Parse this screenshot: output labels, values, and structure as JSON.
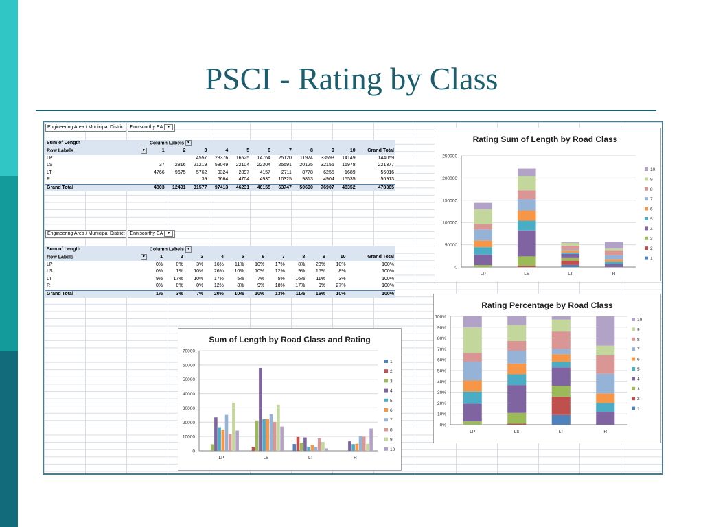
{
  "slide": {
    "title": "PSCI - Rating by Class"
  },
  "filter": {
    "label": "Engineering Area / Municipal District",
    "value": "Enniscorthy EA"
  },
  "pivot_sum": {
    "header1": [
      "Sum of Length",
      "Column Labels"
    ],
    "header2": [
      "Row Labels",
      "1",
      "2",
      "3",
      "4",
      "5",
      "6",
      "7",
      "8",
      "9",
      "10",
      "Grand Total"
    ],
    "rows": [
      [
        "LP",
        "",
        "",
        "4557",
        "23376",
        "16525",
        "14764",
        "25120",
        "11974",
        "33593",
        "14149",
        "144059"
      ],
      [
        "LS",
        "37",
        "2816",
        "21219",
        "58049",
        "22104",
        "22304",
        "25591",
        "20125",
        "32155",
        "16978",
        "221377"
      ],
      [
        "LT",
        "4766",
        "9675",
        "5762",
        "9324",
        "2897",
        "4157",
        "2711",
        "8778",
        "6255",
        "1689",
        "56016"
      ],
      [
        "R",
        "",
        "",
        "39",
        "6664",
        "4704",
        "4930",
        "10325",
        "9813",
        "4904",
        "15535",
        "56913"
      ]
    ],
    "total": [
      "Grand Total",
      "4803",
      "12491",
      "31577",
      "97413",
      "46231",
      "46155",
      "63747",
      "50690",
      "76907",
      "48352",
      "478365"
    ]
  },
  "pivot_pct": {
    "header1": [
      "Sum of Length",
      "Column Labels"
    ],
    "header2": [
      "Row Labels",
      "1",
      "2",
      "3",
      "4",
      "5",
      "6",
      "7",
      "8",
      "9",
      "10",
      "Grand Total"
    ],
    "rows": [
      [
        "LP",
        "0%",
        "0%",
        "3%",
        "16%",
        "11%",
        "10%",
        "17%",
        "8%",
        "23%",
        "10%",
        "100%"
      ],
      [
        "LS",
        "0%",
        "1%",
        "10%",
        "26%",
        "10%",
        "10%",
        "12%",
        "9%",
        "15%",
        "8%",
        "100%"
      ],
      [
        "LT",
        "9%",
        "17%",
        "10%",
        "17%",
        "5%",
        "7%",
        "5%",
        "16%",
        "11%",
        "3%",
        "100%"
      ],
      [
        "R",
        "0%",
        "0%",
        "0%",
        "12%",
        "8%",
        "9%",
        "18%",
        "17%",
        "9%",
        "27%",
        "100%"
      ]
    ],
    "total": [
      "Grand Total",
      "1%",
      "3%",
      "7%",
      "20%",
      "10%",
      "10%",
      "13%",
      "11%",
      "16%",
      "10%",
      "100%"
    ]
  },
  "colors": [
    "#4f81bd",
    "#c0504d",
    "#9bbb59",
    "#8064a2",
    "#4bacc6",
    "#f79646",
    "#95b3d7",
    "#d99694",
    "#c3d69b",
    "#b3a2c7"
  ],
  "chart_data": [
    {
      "type": "bar",
      "stacked": true,
      "title": "Rating Sum of Length by Road Class",
      "categories": [
        "LP",
        "LS",
        "LT",
        "R"
      ],
      "yticks": [
        "0",
        "50000",
        "100000",
        "150000",
        "200000",
        "250000"
      ],
      "ylim": [
        0,
        250000
      ],
      "legend": "right",
      "series": [
        {
          "name": "1",
          "values": [
            0,
            37,
            4766,
            0
          ]
        },
        {
          "name": "2",
          "values": [
            0,
            2816,
            9675,
            0
          ]
        },
        {
          "name": "3",
          "values": [
            4557,
            21219,
            5762,
            39
          ]
        },
        {
          "name": "4",
          "values": [
            23376,
            58049,
            9324,
            6664
          ]
        },
        {
          "name": "5",
          "values": [
            16525,
            22104,
            2897,
            4704
          ]
        },
        {
          "name": "6",
          "values": [
            14764,
            22304,
            4157,
            4930
          ]
        },
        {
          "name": "7",
          "values": [
            25120,
            25591,
            2711,
            10325
          ]
        },
        {
          "name": "8",
          "values": [
            11974,
            20125,
            8778,
            9813
          ]
        },
        {
          "name": "9",
          "values": [
            33593,
            32155,
            6255,
            4904
          ]
        },
        {
          "name": "10",
          "values": [
            14149,
            16978,
            1689,
            15535
          ]
        }
      ]
    },
    {
      "type": "bar",
      "stacked": true,
      "percent": true,
      "title": "Rating Percentage by Road Class",
      "categories": [
        "LP",
        "LS",
        "LT",
        "R"
      ],
      "yticks": [
        "0%",
        "10%",
        "20%",
        "30%",
        "40%",
        "50%",
        "60%",
        "70%",
        "80%",
        "90%",
        "100%"
      ],
      "ylim": [
        0,
        100
      ],
      "legend": "right",
      "series": [
        {
          "name": "1",
          "values": [
            0,
            0,
            9,
            0
          ]
        },
        {
          "name": "2",
          "values": [
            0,
            1,
            17,
            0
          ]
        },
        {
          "name": "3",
          "values": [
            3,
            10,
            10,
            0
          ]
        },
        {
          "name": "4",
          "values": [
            16,
            26,
            17,
            12
          ]
        },
        {
          "name": "5",
          "values": [
            11,
            10,
            5,
            8
          ]
        },
        {
          "name": "6",
          "values": [
            10,
            10,
            7,
            9
          ]
        },
        {
          "name": "7",
          "values": [
            17,
            12,
            5,
            18
          ]
        },
        {
          "name": "8",
          "values": [
            8,
            9,
            16,
            17
          ]
        },
        {
          "name": "9",
          "values": [
            23,
            15,
            11,
            9
          ]
        },
        {
          "name": "10",
          "values": [
            10,
            8,
            3,
            27
          ]
        }
      ]
    },
    {
      "type": "bar",
      "stacked": false,
      "title": "Sum of Length by Road Class and Rating",
      "categories": [
        "LP",
        "LS",
        "LT",
        "R"
      ],
      "yticks": [
        "0",
        "10000",
        "20000",
        "30000",
        "40000",
        "50000",
        "60000",
        "70000"
      ],
      "ylim": [
        0,
        70000
      ],
      "legend": "right",
      "series": [
        {
          "name": "1",
          "values": [
            0,
            37,
            4766,
            0
          ]
        },
        {
          "name": "2",
          "values": [
            0,
            2816,
            9675,
            0
          ]
        },
        {
          "name": "3",
          "values": [
            4557,
            21219,
            5762,
            39
          ]
        },
        {
          "name": "4",
          "values": [
            23376,
            58049,
            9324,
            6664
          ]
        },
        {
          "name": "5",
          "values": [
            16525,
            22104,
            2897,
            4704
          ]
        },
        {
          "name": "6",
          "values": [
            14764,
            22304,
            4157,
            4930
          ]
        },
        {
          "name": "7",
          "values": [
            25120,
            25591,
            2711,
            10325
          ]
        },
        {
          "name": "8",
          "values": [
            11974,
            20125,
            8778,
            9813
          ]
        },
        {
          "name": "9",
          "values": [
            33593,
            32155,
            6255,
            4904
          ]
        },
        {
          "name": "10",
          "values": [
            14149,
            16978,
            1689,
            15535
          ]
        }
      ]
    }
  ]
}
